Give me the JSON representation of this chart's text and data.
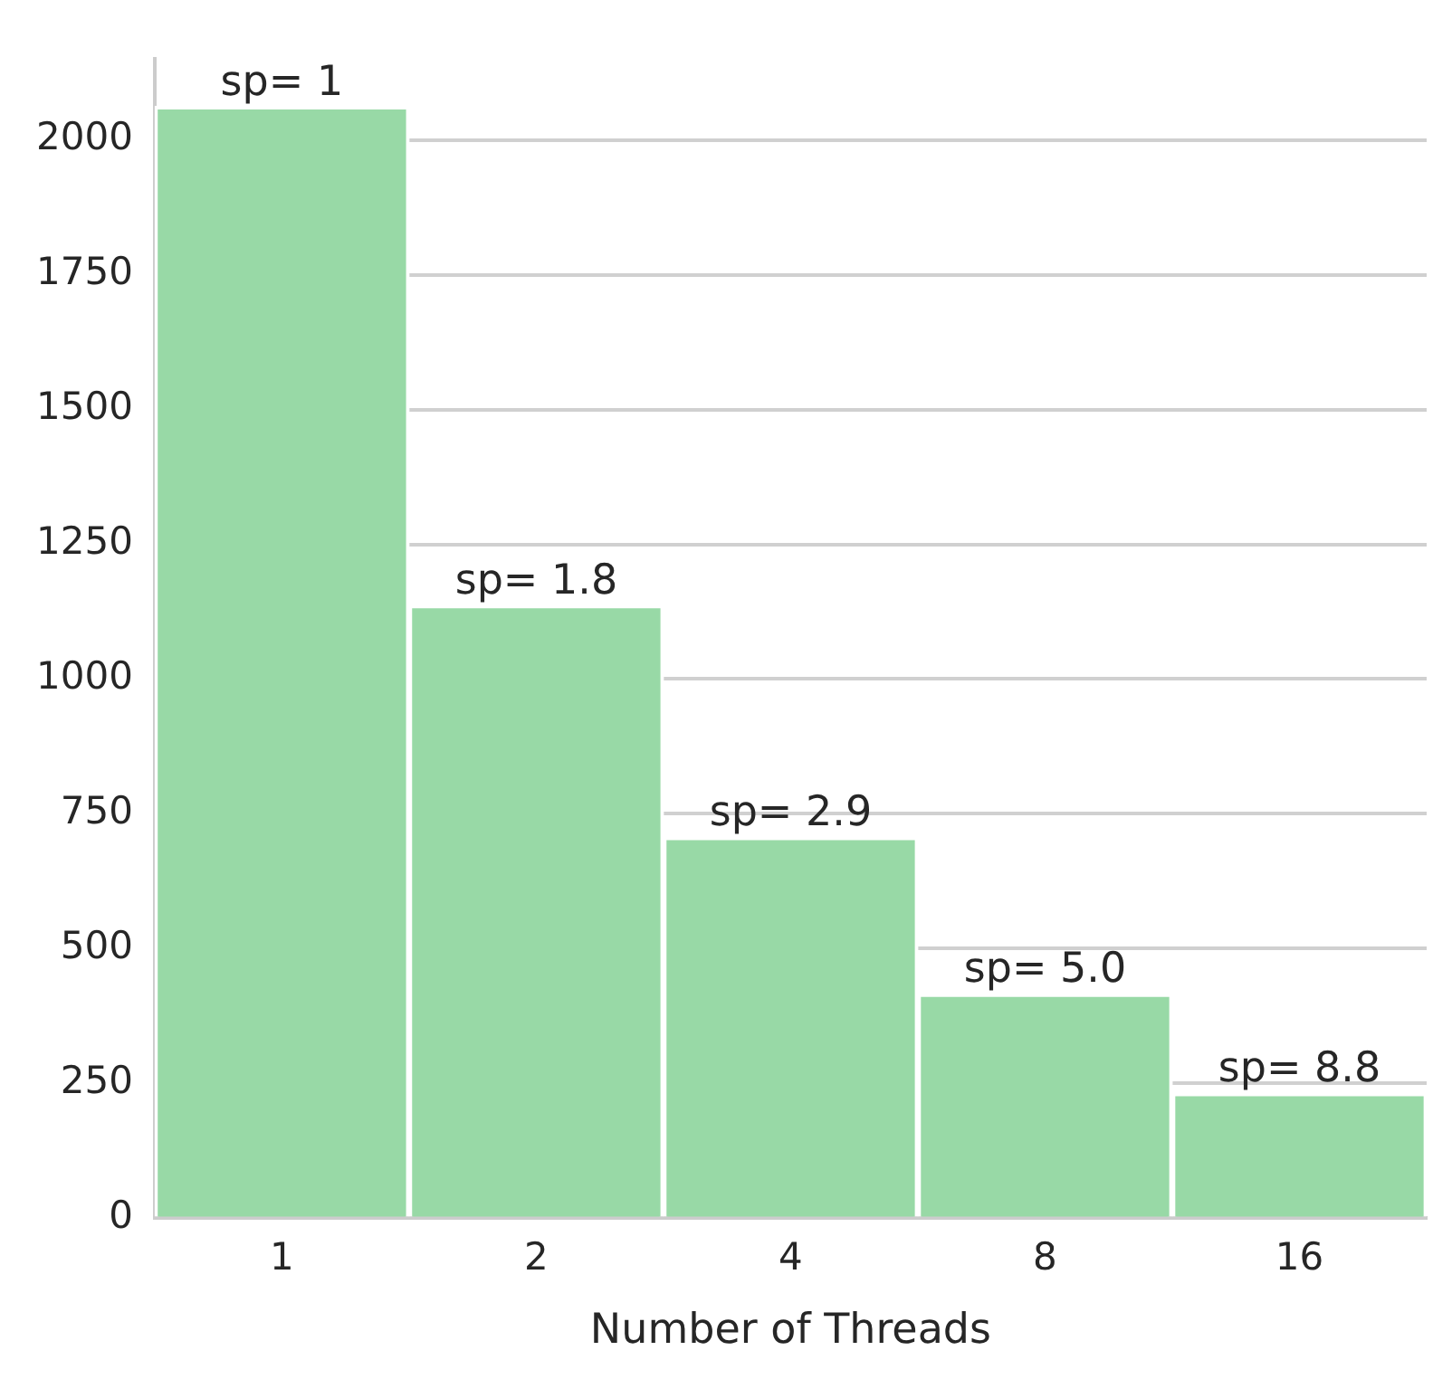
{
  "chart_data": {
    "type": "bar",
    "xlabel": "Number of Threads",
    "categories": [
      "1",
      "2",
      "4",
      "8",
      "16"
    ],
    "values": [
      2062,
      1137,
      707,
      416,
      232
    ],
    "annotations": [
      {
        "text": "sp= 1",
        "x": "1",
        "y": 2062
      },
      {
        "text": "sp= 1.8",
        "x": "2",
        "y": 1137
      },
      {
        "text": "sp= 2.9",
        "x": "4",
        "y": 707
      },
      {
        "text": "sp= 5.0",
        "x": "8",
        "y": 416
      },
      {
        "text": "sp= 8.8",
        "x": "16",
        "y": 232
      }
    ],
    "color": "#98d9a6",
    "ylim": [
      0,
      2150
    ],
    "yticks": [
      0,
      250,
      500,
      750,
      1000,
      1250,
      1500,
      1750,
      2000
    ],
    "grid": "y",
    "legend": false
  }
}
